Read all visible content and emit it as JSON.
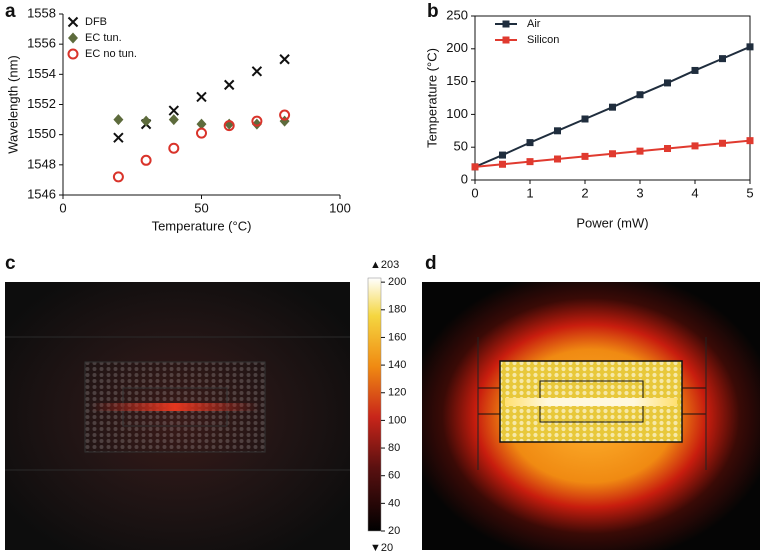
{
  "chart_data": [
    {
      "type": "scatter",
      "panel": "a",
      "xlabel": "Temperature (°C)",
      "ylabel": "Wavelength (nm)",
      "xlim": [
        0,
        100
      ],
      "xticks": [
        0,
        50,
        100
      ],
      "ylim": [
        1546,
        1558
      ],
      "yticks": [
        1546,
        1548,
        1550,
        1552,
        1554,
        1556,
        1558
      ],
      "frame": "axes",
      "legend": "upper left",
      "x": [
        20,
        30,
        40,
        50,
        60,
        70,
        80
      ],
      "series": [
        {
          "name": "DFB",
          "color": "#111111",
          "marker": "x",
          "values": [
            1549.8,
            1550.7,
            1551.6,
            1552.5,
            1553.3,
            1554.2,
            1555.0
          ]
        },
        {
          "name": "EC tun.",
          "color": "#5d6b3c",
          "marker": "diamond",
          "values": [
            1551.0,
            1550.9,
            1551.0,
            1550.7,
            1550.7,
            1550.7,
            1550.9
          ]
        },
        {
          "name": "EC no tun.",
          "color": "#d9332a",
          "marker": "circle",
          "values": [
            1547.2,
            1548.3,
            1549.1,
            1550.1,
            1550.6,
            1550.9,
            1551.3
          ]
        }
      ]
    },
    {
      "type": "line",
      "panel": "b",
      "xlabel": "Power (mW)",
      "ylabel": "Temperature (°C)",
      "xlim": [
        0,
        5
      ],
      "xticks": [
        0,
        1,
        2,
        3,
        4,
        5
      ],
      "ylim": [
        0,
        250
      ],
      "yticks": [
        0,
        50,
        100,
        150,
        200,
        250
      ],
      "frame": "box",
      "legend": "upper left",
      "x": [
        0,
        0.5,
        1,
        1.5,
        2,
        2.5,
        3,
        3.5,
        4,
        4.5,
        5
      ],
      "series": [
        {
          "name": "Air",
          "color": "#1f2d3d",
          "marker": "square",
          "values": [
            20,
            38,
            57,
            75,
            93,
            111,
            130,
            148,
            167,
            185,
            203
          ]
        },
        {
          "name": "Silicon",
          "color": "#e03a2f",
          "marker": "square",
          "values": [
            20,
            24,
            28,
            32,
            36,
            40,
            44,
            48,
            52,
            56,
            60
          ]
        }
      ]
    },
    {
      "type": "heatmap",
      "panel": "c",
      "zlim": [
        {
          "value": 20,
          "label": "▼20"
        },
        {
          "value": 203,
          "label": "▲203"
        }
      ],
      "zticks": [
        20,
        40,
        60,
        80,
        100,
        120,
        140,
        160,
        180,
        200
      ]
    },
    {
      "type": "heatmap",
      "panel": "d"
    }
  ]
}
